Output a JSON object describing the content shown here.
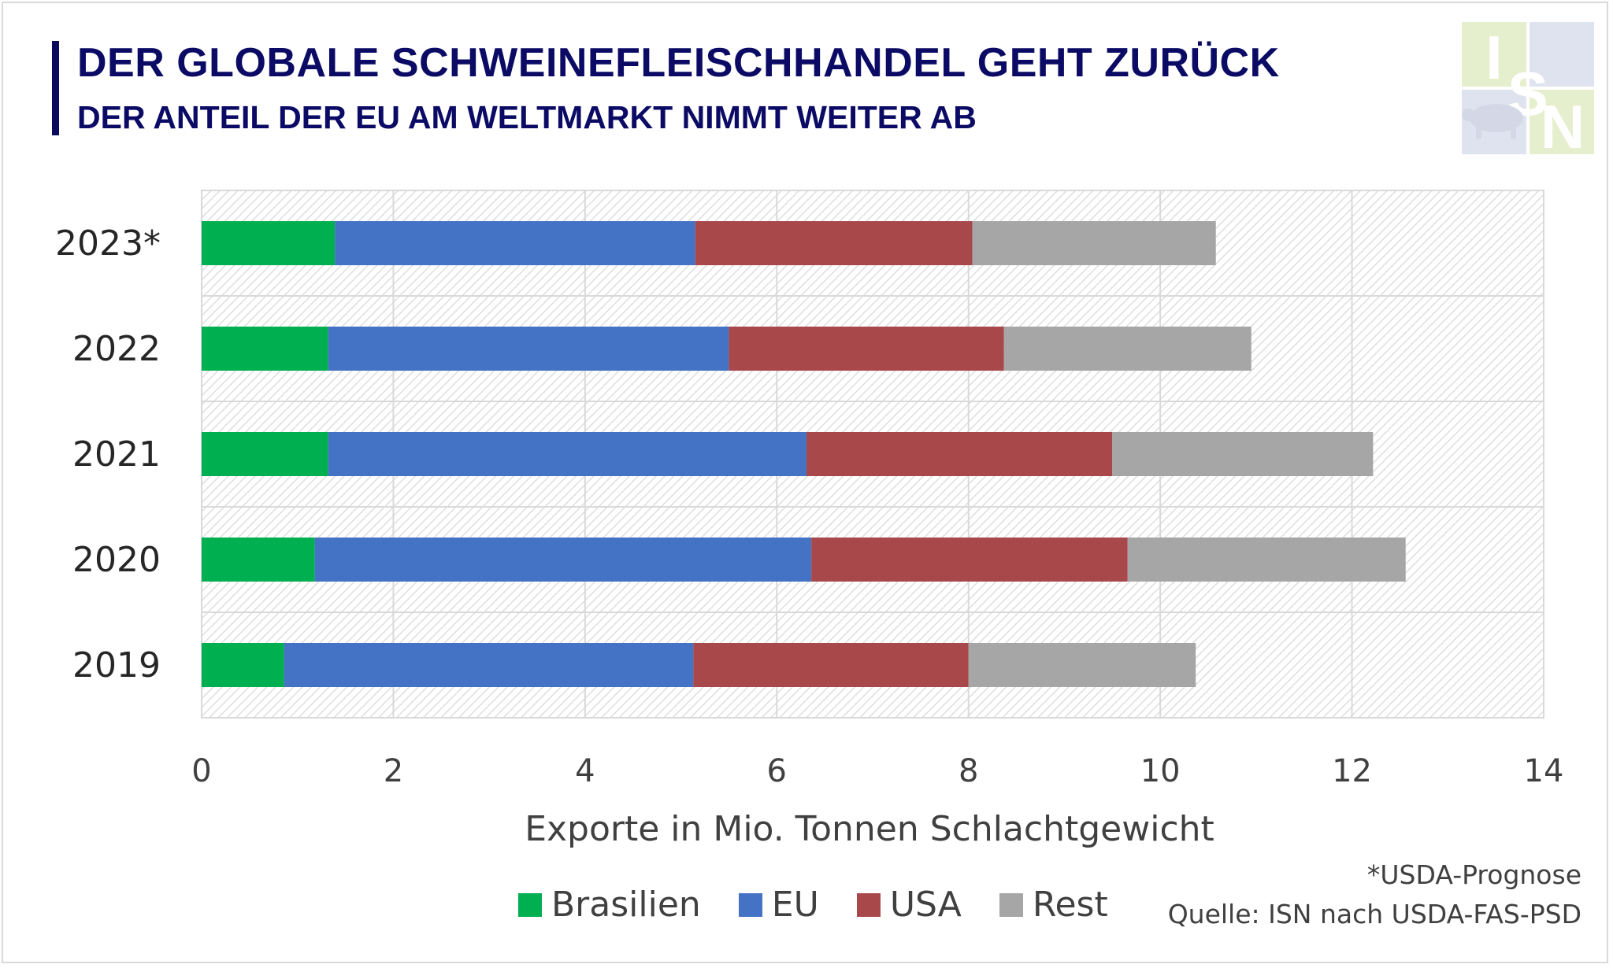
{
  "header": {
    "title": "DER GLOBALE SCHWEINEFLEISCHHANDEL GEHT ZURÜCK",
    "subtitle": "DER ANTEIL DER EU AM WELTMARKT NIMMT WEITER AB"
  },
  "logo": {
    "letters": [
      "I",
      "S",
      "N"
    ],
    "icon": "pig-icon"
  },
  "footnotes": {
    "note": "*USDA-Prognose",
    "source": "Quelle: ISN nach USDA-FAS-PSD"
  },
  "colors": {
    "Brasilien": "#00b050",
    "EU": "#4472c4",
    "USA": "#a9484b",
    "Rest": "#a6a6a6",
    "title": "#0b0b66"
  },
  "chart_data": {
    "type": "bar",
    "orientation": "horizontal",
    "stacked": true,
    "categories": [
      "2019",
      "2020",
      "2021",
      "2022",
      "2023*"
    ],
    "series": [
      {
        "name": "Brasilien",
        "values": [
          0.86,
          1.18,
          1.32,
          1.32,
          1.39
        ]
      },
      {
        "name": "EU",
        "values": [
          4.27,
          5.18,
          4.99,
          4.18,
          3.76
        ]
      },
      {
        "name": "USA",
        "values": [
          2.87,
          3.3,
          3.19,
          2.87,
          2.89
        ]
      },
      {
        "name": "Rest",
        "values": [
          2.37,
          2.9,
          2.72,
          2.58,
          2.54
        ]
      }
    ],
    "xlabel": "Exporte in Mio. Tonnen Schlachtgewicht",
    "xlim": [
      0,
      14
    ],
    "xticks": [
      "0",
      "2",
      "4",
      "6",
      "8",
      "10",
      "12",
      "14"
    ],
    "grid": true,
    "legend_position": "bottom"
  }
}
